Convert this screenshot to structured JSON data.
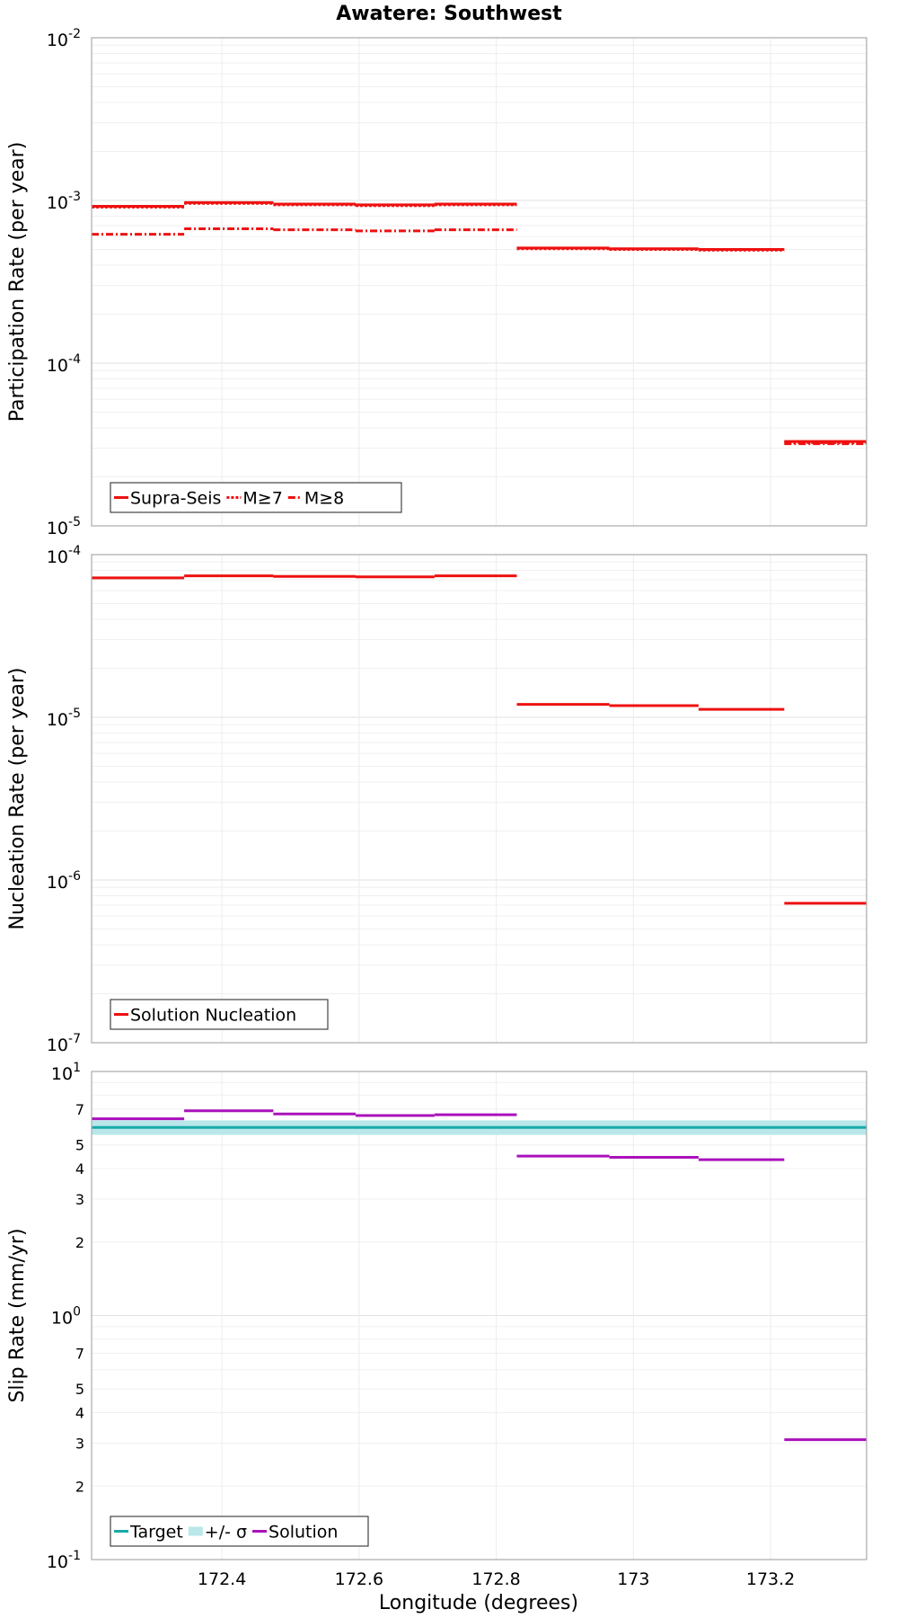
{
  "title": "Awatere: Southwest",
  "xlabel": "Longitude (degrees)",
  "colors": {
    "red": "#ee1111",
    "teal": "#17aaa8",
    "sigma": "#b9e7ea",
    "magenta": "#aa11bb"
  },
  "x_ticks": [
    172.4,
    172.6,
    172.8,
    173,
    173.2
  ],
  "x_tick_labels": [
    "172.4",
    "172.6",
    "172.8",
    "173",
    "173.2"
  ],
  "chart_data": [
    {
      "type": "line",
      "ylabel": "Participation Rate (per year)",
      "yscale": "log",
      "ylim": [
        1e-05,
        0.01
      ],
      "xlim": [
        172.21,
        173.34
      ],
      "major_tick_exps": [
        -5,
        -4,
        -3,
        -2
      ],
      "minor_tick_labels": [],
      "legend": {
        "position": "bottom-left",
        "entries": [
          "Supra-Seis",
          "M≥7",
          "M≥8"
        ]
      },
      "series": [
        {
          "name": "Supra-Seis",
          "style": "solid",
          "color": "red",
          "segments": [
            [
              172.21,
              172.345,
              0.00092
            ],
            [
              172.345,
              172.475,
              0.00097
            ],
            [
              172.475,
              172.595,
              0.00095
            ],
            [
              172.595,
              172.71,
              0.00094
            ],
            [
              172.71,
              172.83,
              0.00095
            ],
            [
              172.83,
              172.965,
              0.00051
            ],
            [
              172.965,
              173.095,
              0.000505
            ],
            [
              173.095,
              173.22,
              0.0005
            ],
            [
              173.22,
              173.34,
              3.3e-05
            ]
          ]
        },
        {
          "name": "M≥7",
          "style": "dotted",
          "color": "red",
          "segments": [
            [
              172.21,
              172.345,
              0.00091
            ],
            [
              172.345,
              172.475,
              0.00096
            ],
            [
              172.475,
              172.595,
              0.00094
            ],
            [
              172.595,
              172.71,
              0.00093
            ],
            [
              172.71,
              172.83,
              0.00094
            ],
            [
              172.83,
              172.965,
              0.000505
            ],
            [
              172.965,
              173.095,
              0.0005
            ],
            [
              173.095,
              173.22,
              0.000495
            ],
            [
              173.22,
              173.34,
              3.25e-05
            ]
          ]
        },
        {
          "name": "M≥8",
          "style": "dashdot",
          "color": "red",
          "segments": [
            [
              172.21,
              172.345,
              0.00062
            ],
            [
              172.345,
              172.475,
              0.00067
            ],
            [
              172.475,
              172.595,
              0.00066
            ],
            [
              172.595,
              172.71,
              0.00065
            ],
            [
              172.71,
              172.83,
              0.00066
            ],
            [
              173.22,
              173.34,
              3.2e-05
            ]
          ]
        }
      ]
    },
    {
      "type": "line",
      "ylabel": "Nucleation Rate (per year)",
      "yscale": "log",
      "ylim": [
        1e-07,
        0.0001
      ],
      "xlim": [
        172.21,
        173.34
      ],
      "major_tick_exps": [
        -7,
        -6,
        -5,
        -4
      ],
      "minor_tick_labels": [],
      "legend": {
        "position": "bottom-left",
        "entries": [
          "Solution Nucleation"
        ]
      },
      "series": [
        {
          "name": "Solution Nucleation",
          "style": "solid",
          "color": "red",
          "segments": [
            [
              172.21,
              172.345,
              7.2e-05
            ],
            [
              172.345,
              172.475,
              7.4e-05
            ],
            [
              172.475,
              172.595,
              7.35e-05
            ],
            [
              172.595,
              172.71,
              7.3e-05
            ],
            [
              172.71,
              172.83,
              7.4e-05
            ],
            [
              172.83,
              172.965,
              1.2e-05
            ],
            [
              172.965,
              173.095,
              1.18e-05
            ],
            [
              173.095,
              173.22,
              1.12e-05
            ],
            [
              173.22,
              173.34,
              7.2e-07
            ]
          ]
        }
      ]
    },
    {
      "type": "line",
      "ylabel": "Slip Rate (mm/yr)",
      "yscale": "log",
      "ylim": [
        0.1,
        10
      ],
      "xlim": [
        172.21,
        173.34
      ],
      "major_tick_exps": [
        -1,
        0,
        1
      ],
      "minor_tick_values": [
        0.2,
        0.3,
        0.4,
        0.5,
        0.7,
        2,
        3,
        4,
        5,
        7
      ],
      "minor_tick_labels": [
        "2",
        "3",
        "4",
        "5",
        "7",
        "2",
        "3",
        "4",
        "5",
        "7"
      ],
      "legend": {
        "position": "bottom-left",
        "entries": [
          "Target",
          "+/- σ",
          "Solution"
        ]
      },
      "target": {
        "name": "Target",
        "value": 5.9,
        "color": "teal"
      },
      "sigma_band": {
        "name": "+/- σ",
        "low": 5.5,
        "high": 6.3,
        "color": "sigma"
      },
      "series": [
        {
          "name": "Solution",
          "style": "solid",
          "color": "magenta",
          "segments": [
            [
              172.21,
              172.345,
              6.4
            ],
            [
              172.345,
              172.475,
              6.9
            ],
            [
              172.475,
              172.595,
              6.7
            ],
            [
              172.595,
              172.71,
              6.6
            ],
            [
              172.71,
              172.83,
              6.65
            ],
            [
              172.83,
              172.965,
              4.5
            ],
            [
              172.965,
              173.095,
              4.45
            ],
            [
              173.095,
              173.22,
              4.35
            ],
            [
              173.22,
              173.34,
              0.31
            ]
          ]
        }
      ]
    }
  ]
}
